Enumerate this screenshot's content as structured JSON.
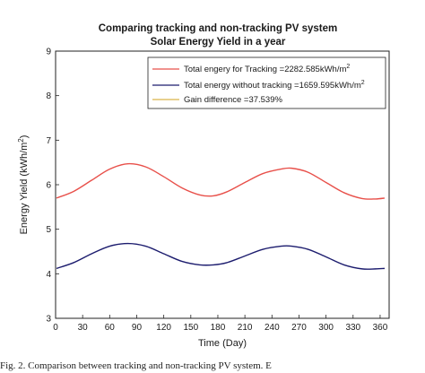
{
  "chart_data": {
    "type": "line",
    "title_line1": "Comparing tracking and non-tracking PV system",
    "title_line2": "Solar Energy Yield in a year",
    "xlabel": "Time (Day)",
    "ylabel_main": "Energy Yield (kWh/m",
    "ylabel_sup": "2",
    "ylabel_end": ")",
    "xlim": [
      0,
      370
    ],
    "ylim": [
      3,
      9
    ],
    "xticks": [
      "0",
      "30",
      "60",
      "90",
      "120",
      "150",
      "180",
      "210",
      "240",
      "270",
      "300",
      "330",
      "360"
    ],
    "yticks": [
      "3",
      "4",
      "5",
      "6",
      "7",
      "8",
      "9"
    ],
    "grid": false,
    "legend_position": "top-right",
    "series": [
      {
        "name_main": "Total engery for Tracking =2282.585kWh/m",
        "name_sup": "2",
        "color": "#e8504a",
        "x": [
          1,
          20,
          40,
          60,
          80,
          100,
          120,
          140,
          160,
          175,
          190,
          210,
          230,
          250,
          262,
          280,
          300,
          320,
          340,
          355,
          365
        ],
        "y": [
          5.7,
          5.85,
          6.1,
          6.35,
          6.47,
          6.4,
          6.18,
          5.93,
          5.77,
          5.75,
          5.84,
          6.05,
          6.25,
          6.35,
          6.37,
          6.28,
          6.05,
          5.82,
          5.69,
          5.68,
          5.7
        ]
      },
      {
        "name_main": "Total energy without tracking =1659.595kWh/m",
        "name_sup": "2",
        "color": "#1c1c6e",
        "x": [
          1,
          20,
          40,
          60,
          80,
          100,
          120,
          140,
          160,
          175,
          190,
          210,
          230,
          250,
          262,
          280,
          300,
          320,
          340,
          355,
          365
        ],
        "y": [
          4.12,
          4.25,
          4.45,
          4.62,
          4.68,
          4.62,
          4.45,
          4.28,
          4.2,
          4.2,
          4.25,
          4.4,
          4.55,
          4.62,
          4.62,
          4.55,
          4.38,
          4.2,
          4.11,
          4.11,
          4.12
        ]
      },
      {
        "name_main": "Gain difference =37.539%",
        "name_sup": "",
        "color": "#d9b44a",
        "x": [],
        "y": []
      }
    ]
  },
  "caption": "Fig. 2. Comparison between tracking and non-tracking PV system. E"
}
